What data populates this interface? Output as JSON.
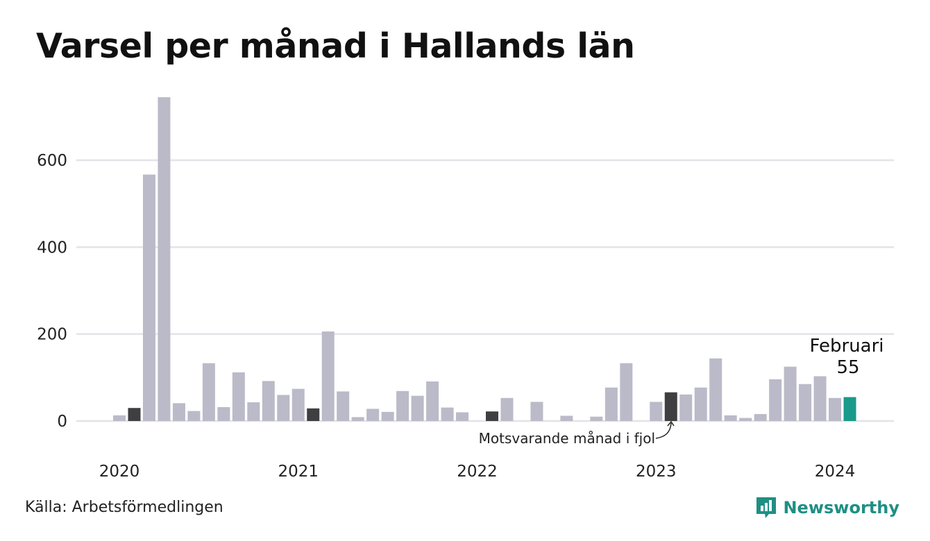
{
  "title": "Varsel per månad i Hallands län",
  "source": "Källa: Arbetsförmedlingen",
  "brand": "Newsworthy",
  "colors": {
    "bar": "#bbbac8",
    "highlight": "#3f3f41",
    "current": "#1a9a8a",
    "grid": "#e3e3e8",
    "brand": "#1f8f84"
  },
  "chart_data": {
    "type": "bar",
    "title": "Varsel per månad i Hallands län",
    "xlabel": "",
    "ylabel": "",
    "ylim": [
      0,
      750
    ],
    "yticks": [
      0,
      200,
      400,
      600
    ],
    "grid": true,
    "x_tick_labels": [
      "2020",
      "2021",
      "2022",
      "2023",
      "2024"
    ],
    "categories": [
      "2020-01",
      "2020-02",
      "2020-03",
      "2020-04",
      "2020-05",
      "2020-06",
      "2020-07",
      "2020-08",
      "2020-09",
      "2020-10",
      "2020-11",
      "2020-12",
      "2021-01",
      "2021-02",
      "2021-03",
      "2021-04",
      "2021-05",
      "2021-06",
      "2021-07",
      "2021-08",
      "2021-09",
      "2021-10",
      "2021-11",
      "2021-12",
      "2022-01",
      "2022-02",
      "2022-03",
      "2022-04",
      "2022-05",
      "2022-06",
      "2022-07",
      "2022-08",
      "2022-09",
      "2022-10",
      "2022-11",
      "2022-12",
      "2023-01",
      "2023-02",
      "2023-03",
      "2023-04",
      "2023-05",
      "2023-06",
      "2023-07",
      "2023-08",
      "2023-09",
      "2023-10",
      "2023-11",
      "2023-12",
      "2024-01",
      "2024-02"
    ],
    "values": [
      13,
      30,
      567,
      745,
      41,
      23,
      133,
      32,
      112,
      43,
      92,
      60,
      74,
      29,
      206,
      68,
      9,
      28,
      21,
      69,
      58,
      91,
      31,
      20,
      0,
      22,
      53,
      0,
      44,
      0,
      12,
      0,
      10,
      77,
      133,
      0,
      44,
      66,
      61,
      77,
      144,
      13,
      7,
      16,
      96,
      125,
      85,
      103,
      53,
      55
    ],
    "highlight_categories": [
      "2020-02",
      "2021-02",
      "2022-02",
      "2023-02"
    ],
    "current_category": "2024-02",
    "callout": {
      "month": "Februari",
      "value": "55"
    },
    "annotation": "Motsvarande månad i fjol"
  }
}
